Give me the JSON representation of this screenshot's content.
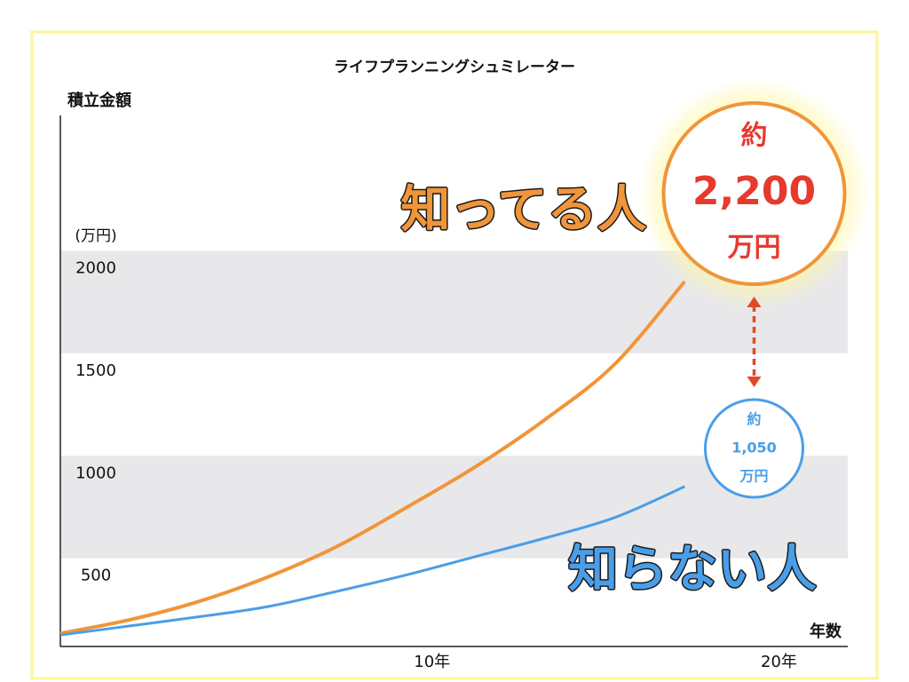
{
  "chart_data": {
    "type": "line",
    "title": "ライフプランニングシュミレーター",
    "y_label": "積立金額",
    "y_unit": "(万円)",
    "x_label": "年数",
    "x": [
      0,
      2,
      4,
      6,
      8,
      10,
      12,
      14,
      16,
      18
    ],
    "series": [
      {
        "name": "知ってる人",
        "color": "#f0953a",
        "values": [
          134,
          200,
          290,
          410,
          560,
          750,
          950,
          1180,
          1450,
          1850
        ]
      },
      {
        "name": "知らない人",
        "color": "#4a9ee8",
        "values": [
          126,
          170,
          215,
          265,
          340,
          420,
          510,
          600,
          700,
          850
        ]
      }
    ],
    "xlim": [
      0,
      22.7
    ],
    "xticks": [
      {
        "value": 10,
        "label": "10年"
      },
      {
        "value": 20,
        "label": "20年"
      }
    ],
    "ylim": [
      70,
      2660
    ],
    "yticks": [
      500,
      1000,
      1500,
      2000
    ],
    "callouts": [
      {
        "x": 20,
        "lines": [
          "約",
          "2,200",
          "万円"
        ]
      },
      {
        "x": 20,
        "lines": [
          "約",
          "1,050",
          "万円"
        ]
      }
    ]
  }
}
